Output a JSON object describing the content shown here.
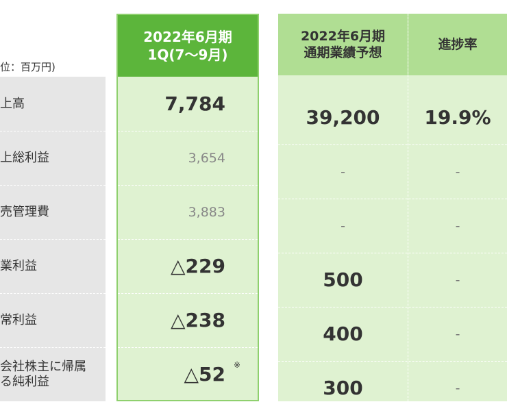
{
  "unit_label": "位：百万円)",
  "q1_header": {
    "line1": "2022年6月期",
    "line2": "1Q(7～9月)"
  },
  "forecast_header": {
    "line1": "2022年6月期",
    "line2": "通期業績予想"
  },
  "progress_header": "進捗率",
  "rows": [
    {
      "label": "上高",
      "q1": "7,784",
      "forecast": "39,200",
      "progress": "19.9%"
    },
    {
      "label": "上総利益",
      "q1": "3,654",
      "forecast": "-",
      "progress": "-"
    },
    {
      "label": "売管理費",
      "q1": "3,883",
      "forecast": "-",
      "progress": "-"
    },
    {
      "label": "業利益",
      "q1_mark": "△",
      "q1": "229",
      "forecast": "500",
      "progress": "-"
    },
    {
      "label": "常利益",
      "q1_mark": "△",
      "q1": "238",
      "forecast": "400",
      "progress": "-"
    },
    {
      "label": "会社株主に帰属\nる純利益",
      "q1_mark": "△",
      "q1": "52",
      "q1_note": "※",
      "forecast": "300",
      "progress": "-"
    }
  ],
  "colors": {
    "q1_header_bg": "#5cb53b",
    "q1_border": "#8fd06e",
    "cell_bg": "#dff2d1",
    "forecast_header_bg": "#b0de93",
    "label_bg": "#e6e6e6"
  }
}
